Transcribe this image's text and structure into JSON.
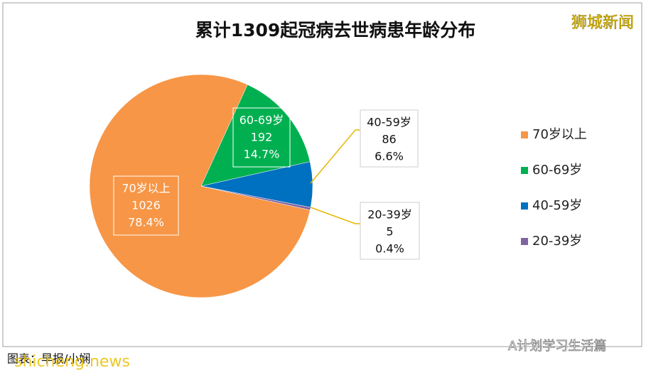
{
  "chart_data": {
    "type": "pie",
    "title": "累计1309起冠病去世病患年龄分布",
    "categories": [
      "70岁以上",
      "60-69岁",
      "40-59岁",
      "20-39岁"
    ],
    "values": [
      1026,
      192,
      86,
      5
    ],
    "percent_labels": [
      "78.4%",
      "14.7%",
      "6.6%",
      "0.4%"
    ],
    "colors": [
      "#f79646",
      "#00b050",
      "#0070c0",
      "#8064a2"
    ],
    "legend": "right"
  },
  "watermark": "狮城新闻",
  "source": "图表：早报/小娴",
  "site": "shicheng.news",
  "wechat": "A计划学习生活篇"
}
